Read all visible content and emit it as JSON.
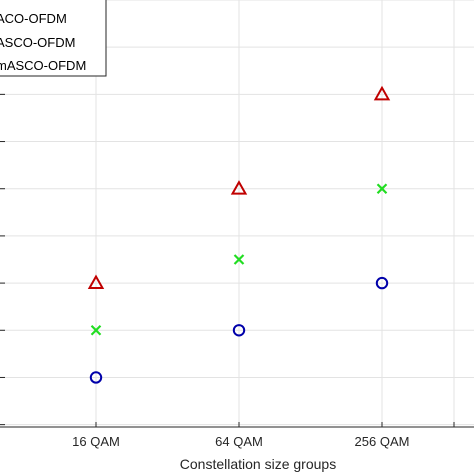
{
  "chart_data": {
    "type": "scatter",
    "categories": [
      "16 QAM",
      "64 QAM",
      "256 QAM"
    ],
    "xlabel": "Constellation size groups",
    "ylabel": "",
    "grid": true,
    "legend_position": "top-left",
    "series": [
      {
        "name": "ACO-OFDM",
        "marker": "triangle",
        "color": "#c00000",
        "values": [
          3.0,
          5.0,
          7.0
        ]
      },
      {
        "name": "ASCO-OFDM",
        "marker": "x",
        "color": "#22dd22",
        "values": [
          2.0,
          3.5,
          5.0
        ]
      },
      {
        "name": "mASCO-OFDM",
        "marker": "circle",
        "color": "#0000aa",
        "values": [
          1.0,
          2.0,
          3.0
        ]
      }
    ],
    "ylim": [
      -0.05,
      9.0
    ]
  }
}
